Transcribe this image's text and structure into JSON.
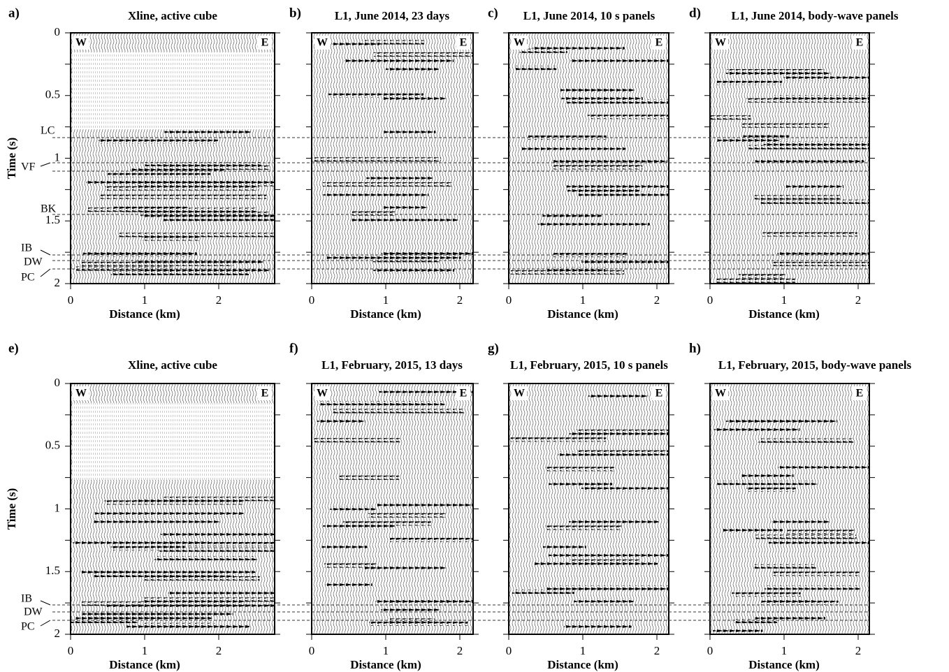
{
  "rows": [
    {
      "y_axis_label": "Time (s)",
      "y_ticks": [
        "0",
        "0.5",
        "1",
        "1.5",
        "2"
      ],
      "horizons": [
        "LC",
        "VF",
        "BK",
        "IB",
        "DW",
        "PC"
      ],
      "panels": [
        {
          "letter": "a)",
          "title": "Xline, active cube",
          "west": "W",
          "east": "E",
          "x_ticks": [
            "0",
            "1",
            "2"
          ],
          "x_axis_label": "Distance (km)"
        },
        {
          "letter": "b)",
          "title": "L1, June 2014, 23 days",
          "west": "W",
          "east": "E",
          "x_ticks": [
            "0",
            "1",
            "2"
          ],
          "x_axis_label": "Distance (km)"
        },
        {
          "letter": "c)",
          "title": "L1, June 2014, 10 s panels",
          "west": "W",
          "east": "E",
          "x_ticks": [
            "0",
            "1",
            "2"
          ],
          "x_axis_label": "Distance (km)"
        },
        {
          "letter": "d)",
          "title": "L1, June 2014, body-wave panels",
          "west": "W",
          "east": "E",
          "x_ticks": [
            "0",
            "1",
            "2"
          ],
          "x_axis_label": "Distance (km)"
        }
      ]
    },
    {
      "y_axis_label": "Time (s)",
      "y_ticks": [
        "0",
        "0.5",
        "1",
        "1.5",
        "2"
      ],
      "horizons": [
        "IB",
        "DW",
        "PC"
      ],
      "panels": [
        {
          "letter": "e)",
          "title": "Xline, active cube",
          "west": "W",
          "east": "E",
          "x_ticks": [
            "0",
            "1",
            "2"
          ],
          "x_axis_label": "Distance (km)"
        },
        {
          "letter": "f)",
          "title": "L1, February, 2015, 13 days",
          "west": "W",
          "east": "E",
          "x_ticks": [
            "0",
            "1",
            "2"
          ],
          "x_axis_label": "Distance (km)"
        },
        {
          "letter": "g)",
          "title": "L1, February, 2015, 10 s panels",
          "west": "W",
          "east": "E",
          "x_ticks": [
            "0",
            "1",
            "2"
          ],
          "x_axis_label": "Distance (km)"
        },
        {
          "letter": "h)",
          "title": "L1, February, 2015, body-wave panels",
          "west": "W",
          "east": "E",
          "x_ticks": [
            "0",
            "1",
            "2"
          ],
          "x_axis_label": "Distance (km)"
        }
      ]
    }
  ]
}
